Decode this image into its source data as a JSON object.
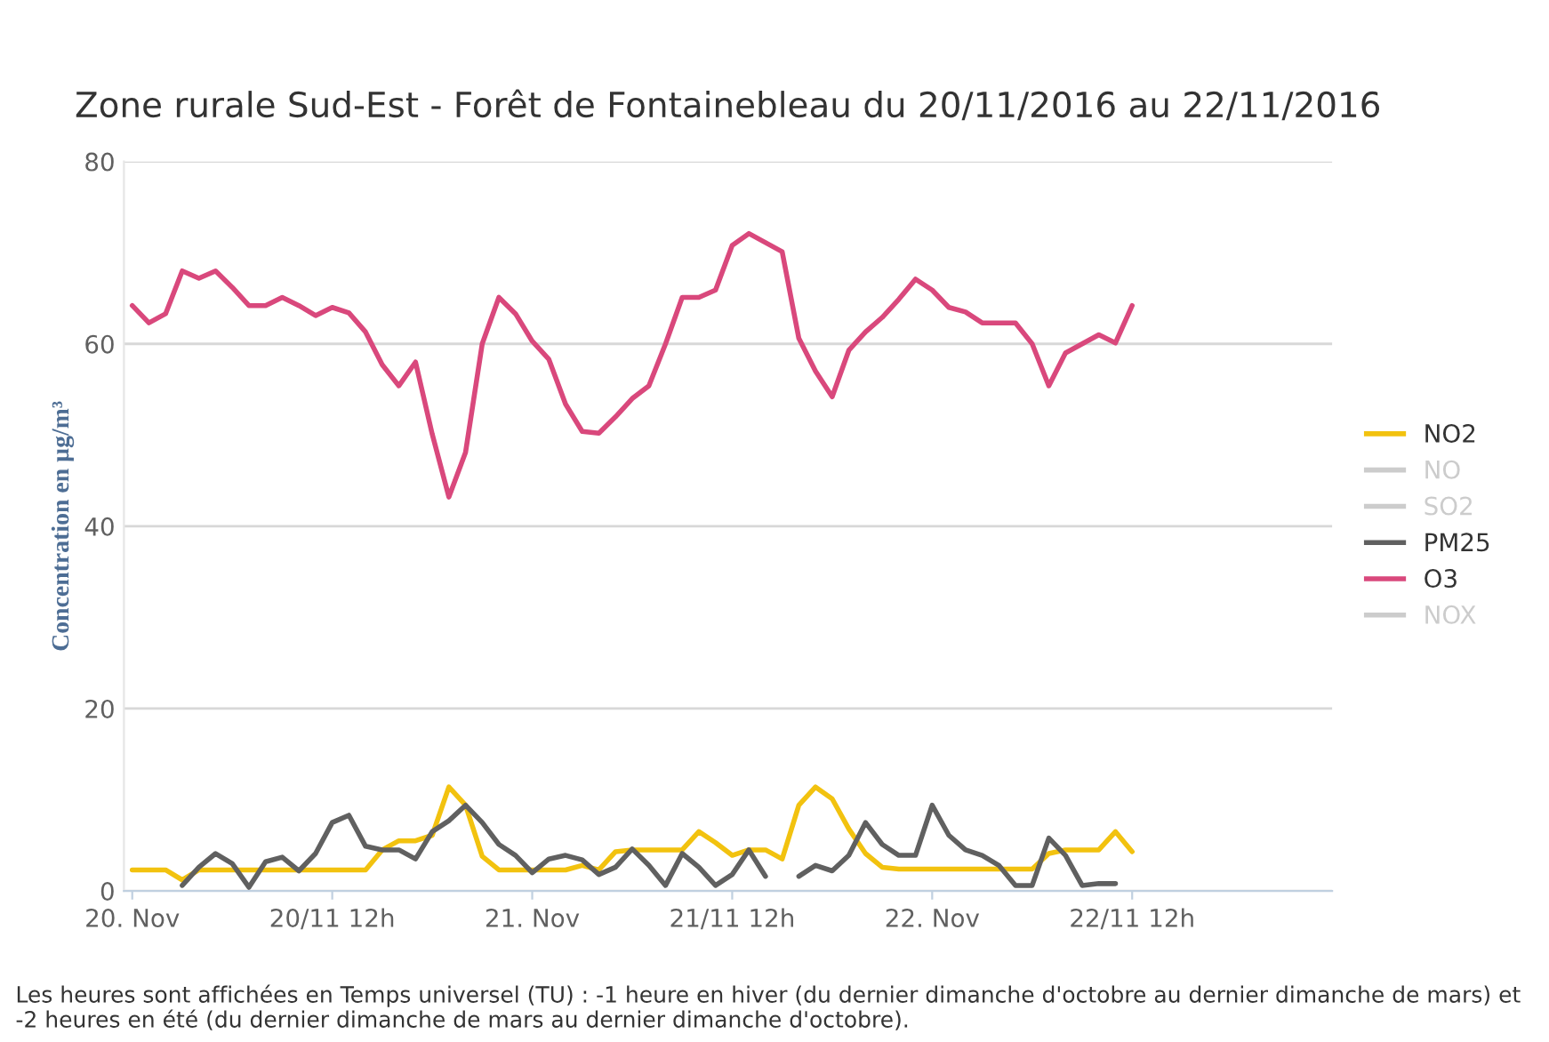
{
  "chart_data": {
    "type": "line",
    "title": "Zone rurale Sud-Est - Forêt de Fontainebleau du 20/11/2016 au 22/11/2016",
    "ylabel": "Concentration en µg/m³",
    "x": [
      "2016-11-20T00:00",
      "2016-11-20T01:00",
      "2016-11-20T02:00",
      "2016-11-20T03:00",
      "2016-11-20T04:00",
      "2016-11-20T05:00",
      "2016-11-20T06:00",
      "2016-11-20T07:00",
      "2016-11-20T08:00",
      "2016-11-20T09:00",
      "2016-11-20T10:00",
      "2016-11-20T11:00",
      "2016-11-20T12:00",
      "2016-11-20T13:00",
      "2016-11-20T14:00",
      "2016-11-20T15:00",
      "2016-11-20T16:00",
      "2016-11-20T17:00",
      "2016-11-20T18:00",
      "2016-11-20T19:00",
      "2016-11-20T20:00",
      "2016-11-20T21:00",
      "2016-11-20T22:00",
      "2016-11-20T23:00",
      "2016-11-21T00:00",
      "2016-11-21T01:00",
      "2016-11-21T02:00",
      "2016-11-21T03:00",
      "2016-11-21T04:00",
      "2016-11-21T05:00",
      "2016-11-21T06:00",
      "2016-11-21T07:00",
      "2016-11-21T08:00",
      "2016-11-21T09:00",
      "2016-11-21T10:00",
      "2016-11-21T11:00",
      "2016-11-21T12:00",
      "2016-11-21T13:00",
      "2016-11-21T14:00",
      "2016-11-21T15:00",
      "2016-11-21T16:00",
      "2016-11-21T17:00",
      "2016-11-21T18:00",
      "2016-11-21T19:00",
      "2016-11-21T20:00",
      "2016-11-21T21:00",
      "2016-11-21T22:00",
      "2016-11-21T23:00",
      "2016-11-22T00:00",
      "2016-11-22T01:00",
      "2016-11-22T02:00",
      "2016-11-22T03:00",
      "2016-11-22T04:00",
      "2016-11-22T05:00",
      "2016-11-22T06:00",
      "2016-11-22T07:00",
      "2016-11-22T08:00",
      "2016-11-22T09:00",
      "2016-11-22T10:00",
      "2016-11-22T11:00",
      "2016-11-22T12:00"
    ],
    "xlim": [
      "2016-11-19T23:30",
      "2016-11-23T00:00"
    ],
    "xticks": [
      {
        "value": "2016-11-20T00:00",
        "label": "20. Nov"
      },
      {
        "value": "2016-11-20T12:00",
        "label": "20/11 12h"
      },
      {
        "value": "2016-11-21T00:00",
        "label": "21. Nov"
      },
      {
        "value": "2016-11-21T12:00",
        "label": "21/11 12h"
      },
      {
        "value": "2016-11-22T00:00",
        "label": "22. Nov"
      },
      {
        "value": "2016-11-22T12:00",
        "label": "22/11 12h"
      }
    ],
    "ylim": [
      0,
      80
    ],
    "yticks": [
      0,
      20,
      40,
      60,
      80
    ],
    "grid": "y",
    "legend": "right",
    "marker": "none",
    "line_style": "solid",
    "series": [
      {
        "name": "NO2",
        "color": "#f2c20f",
        "values": [
          2.3,
          2.3,
          2.3,
          1.2,
          2.3,
          2.3,
          2.3,
          2.3,
          2.3,
          2.3,
          2.3,
          2.3,
          2.3,
          2.3,
          2.3,
          4.5,
          5.5,
          5.5,
          6.1,
          11.4,
          9.4,
          3.8,
          2.3,
          2.3,
          2.3,
          2.3,
          2.3,
          2.8,
          2.3,
          4.3,
          4.5,
          4.5,
          4.5,
          4.5,
          6.5,
          5.3,
          3.9,
          4.5,
          4.5,
          3.5,
          9.4,
          11.4,
          10.1,
          6.8,
          4.1,
          2.6,
          2.4,
          2.4,
          2.4,
          2.4,
          2.4,
          2.4,
          2.4,
          2.4,
          2.4,
          4.1,
          4.5,
          4.5,
          4.5,
          6.5,
          4.3
        ]
      },
      {
        "name": "NO",
        "color": "#cccccc",
        "values": [
          null,
          null,
          null,
          null,
          null,
          null,
          null,
          null,
          null,
          null,
          null,
          null,
          null,
          null,
          null,
          null,
          null,
          null,
          null,
          null,
          null,
          null,
          null,
          null,
          null,
          null,
          null,
          null,
          null,
          null,
          null,
          null,
          null,
          null,
          null,
          null,
          null,
          null,
          null,
          null,
          null,
          null,
          null,
          null,
          null,
          null,
          null,
          null,
          null,
          null,
          null,
          null,
          null,
          null,
          null,
          null,
          null,
          null,
          null,
          null,
          null
        ]
      },
      {
        "name": "SO2",
        "color": "#cccccc",
        "values": [
          null,
          null,
          null,
          null,
          null,
          null,
          null,
          null,
          null,
          null,
          null,
          null,
          null,
          null,
          null,
          null,
          null,
          null,
          null,
          null,
          null,
          null,
          null,
          null,
          null,
          null,
          null,
          null,
          null,
          null,
          null,
          null,
          null,
          null,
          null,
          null,
          null,
          null,
          null,
          null,
          null,
          null,
          null,
          null,
          null,
          null,
          null,
          null,
          null,
          null,
          null,
          null,
          null,
          null,
          null,
          null,
          null,
          null,
          null,
          null,
          null
        ]
      },
      {
        "name": "PM25",
        "color": "#606060",
        "values": [
          null,
          null,
          null,
          0.6,
          2.6,
          4.1,
          3.0,
          0.4,
          3.2,
          3.7,
          2.2,
          4.1,
          7.5,
          8.3,
          4.9,
          4.5,
          4.5,
          3.5,
          6.5,
          7.7,
          9.4,
          7.5,
          5.1,
          3.9,
          2.0,
          3.5,
          3.9,
          3.4,
          1.8,
          2.6,
          4.6,
          2.8,
          0.6,
          4.1,
          2.6,
          0.6,
          1.8,
          4.5,
          1.6,
          null,
          1.6,
          2.8,
          2.2,
          3.9,
          7.5,
          5.1,
          3.9,
          3.9,
          9.4,
          6.1,
          4.5,
          3.9,
          2.8,
          0.6,
          0.6,
          5.8,
          3.9,
          0.6,
          0.8,
          0.8,
          null
        ]
      },
      {
        "name": "O3",
        "color": "#d9487c",
        "values": [
          64.2,
          62.3,
          63.3,
          68.0,
          67.2,
          68.0,
          66.2,
          64.2,
          64.2,
          65.1,
          64.2,
          63.1,
          64.0,
          63.4,
          61.3,
          57.7,
          55.4,
          58.0,
          50.1,
          43.2,
          48.1,
          60.0,
          65.1,
          63.3,
          60.3,
          58.3,
          53.4,
          50.4,
          50.2,
          52.0,
          54.0,
          55.4,
          60.0,
          65.1,
          65.1,
          65.9,
          70.8,
          72.1,
          71.1,
          70.1,
          60.6,
          57.0,
          54.2,
          59.3,
          61.3,
          62.9,
          64.9,
          67.1,
          65.9,
          64.0,
          63.5,
          62.3,
          62.3,
          62.3,
          60.0,
          55.4,
          59.0,
          60.0,
          61.0,
          60.1,
          64.2
        ]
      },
      {
        "name": "NOX",
        "color": "#cccccc",
        "values": [
          null,
          null,
          null,
          null,
          null,
          null,
          null,
          null,
          null,
          null,
          null,
          null,
          null,
          null,
          null,
          null,
          null,
          null,
          null,
          null,
          null,
          null,
          null,
          null,
          null,
          null,
          null,
          null,
          null,
          null,
          null,
          null,
          null,
          null,
          null,
          null,
          null,
          null,
          null,
          null,
          null,
          null,
          null,
          null,
          null,
          null,
          null,
          null,
          null,
          null,
          null,
          null,
          null,
          null,
          null,
          null,
          null,
          null,
          null,
          null,
          null
        ]
      }
    ],
    "annotations": [
      "Les heures sont affichées en Temps universel (TU) : -1 heure en hiver (du dernier dimanche d'octobre au dernier dimanche de mars) et -2 heures en été (du dernier dimanche de mars au dernier dimanche d'octobre)."
    ]
  }
}
